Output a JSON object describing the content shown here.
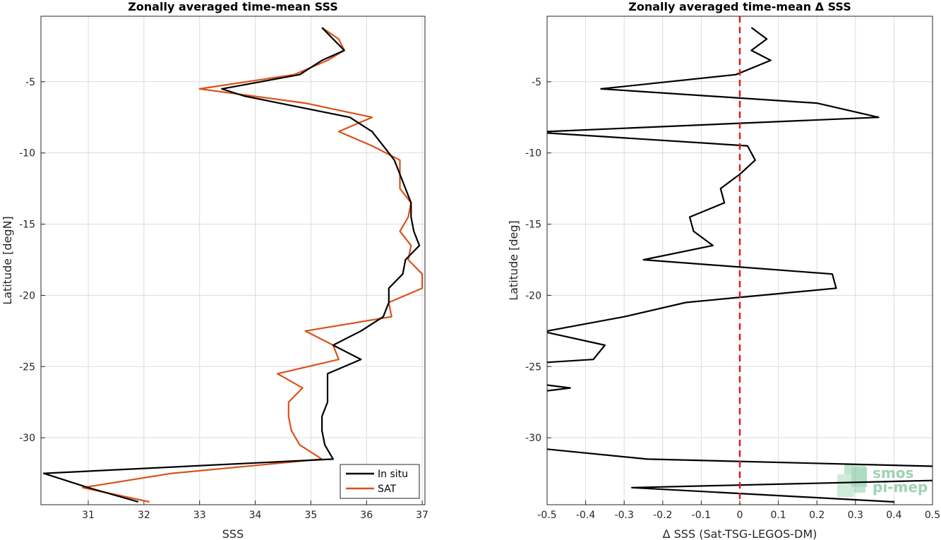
{
  "chart_data": [
    {
      "type": "line",
      "title": "Zonally averaged time-mean SSS",
      "xlabel": "SSS",
      "ylabel": "Latitude [degN]",
      "xlim": [
        30.15,
        37.05
      ],
      "ylim": [
        -34.7,
        -0.4
      ],
      "xticks": [
        31,
        32,
        33,
        34,
        35,
        36,
        37
      ],
      "yticks": [
        -5,
        -10,
        -15,
        -20,
        -25,
        -30
      ],
      "grid": true,
      "legend": "bottom-right",
      "series": [
        {
          "name": "In situ",
          "color": "#000000",
          "lat": [
            -1.2,
            -2.0,
            -2.8,
            -3.5,
            -4.5,
            -5.5,
            -6.0,
            -7.5,
            -8.5,
            -9.5,
            -10.5,
            -11.5,
            -12.5,
            -13.5,
            -14.5,
            -15.5,
            -16.5,
            -17.5,
            -18.5,
            -19.5,
            -20.5,
            -21.5,
            -22.5,
            -23.5,
            -24.5,
            -25.5,
            -26.5,
            -27.5,
            -28.5,
            -29.5,
            -30.5,
            -31.5,
            -32.5,
            -33.5,
            -34.5
          ],
          "sss": [
            35.2,
            35.4,
            35.6,
            35.2,
            34.8,
            33.4,
            33.8,
            35.7,
            36.1,
            36.3,
            36.5,
            36.6,
            36.7,
            36.8,
            36.8,
            36.85,
            36.95,
            36.7,
            36.65,
            36.4,
            36.4,
            36.3,
            35.9,
            35.4,
            35.9,
            35.3,
            35.3,
            35.3,
            35.2,
            35.2,
            35.25,
            35.4,
            30.2,
            31.0,
            31.9
          ]
        },
        {
          "name": "SAT",
          "color": "#D95319",
          "lat": [
            -1.2,
            -2.0,
            -2.8,
            -3.5,
            -4.5,
            -5.5,
            -6.5,
            -7.5,
            -8.5,
            -9.5,
            -10.5,
            -11.5,
            -12.5,
            -13.5,
            -14.5,
            -15.5,
            -16.5,
            -17.5,
            -18.5,
            -19.5,
            -20.5,
            -21.5,
            -22.5,
            -23.5,
            -24.5,
            -25.5,
            -26.5,
            -27.5,
            -28.5,
            -29.5,
            -30.5,
            -31.5,
            -32.5,
            -33.5,
            -34.5
          ],
          "sss": [
            35.2,
            35.5,
            35.6,
            35.3,
            34.7,
            33.0,
            34.9,
            36.1,
            35.5,
            36.1,
            36.6,
            36.6,
            36.6,
            36.8,
            36.75,
            36.6,
            36.8,
            36.75,
            37.0,
            37.0,
            36.4,
            36.45,
            34.9,
            35.4,
            35.5,
            34.4,
            34.85,
            34.6,
            34.6,
            34.65,
            34.8,
            35.2,
            32.5,
            30.9,
            32.1
          ]
        }
      ]
    },
    {
      "type": "line",
      "title": "Zonally averaged time-mean Δ SSS",
      "xlabel": "Δ SSS (Sat-TSG-LEGOS-DM)",
      "ylabel": "Latitude [deg]",
      "xlim": [
        -0.5,
        0.5
      ],
      "ylim": [
        -34.7,
        -0.4
      ],
      "xticks": [
        -0.5,
        -0.4,
        -0.3,
        -0.2,
        -0.1,
        0,
        0.1,
        0.2,
        0.3,
        0.4,
        0.5
      ],
      "xtick_labels": [
        "-0.5",
        "-0.4",
        "-0.3",
        "-0.2",
        "-0.1",
        "0",
        "0.1",
        "0.2",
        "0.3",
        "0.4",
        "0.5"
      ],
      "yticks": [
        -5,
        -10,
        -15,
        -20,
        -25,
        -30
      ],
      "grid": true,
      "reference_line": {
        "x": 0,
        "style": "dashed",
        "color": "#E31A1C"
      },
      "series": [
        {
          "color": "#000000",
          "segments": [
            [
              [
                -1.2,
                0.03
              ],
              [
                -2.0,
                0.07
              ],
              [
                -2.8,
                0.03
              ],
              [
                -3.5,
                0.08
              ],
              [
                -4.5,
                -0.01
              ],
              [
                -5.5,
                -0.36
              ],
              [
                -6.5,
                0.2
              ],
              [
                -7.5,
                0.36
              ],
              [
                -8.5,
                -0.5
              ]
            ],
            [
              [
                -8.6,
                -0.5
              ],
              [
                -9.5,
                0.02
              ],
              [
                -10.5,
                0.04
              ],
              [
                -11.5,
                0.0
              ],
              [
                -12.5,
                -0.05
              ],
              [
                -13.5,
                -0.04
              ],
              [
                -14.5,
                -0.13
              ],
              [
                -15.5,
                -0.12
              ],
              [
                -16.5,
                -0.07
              ],
              [
                -17.5,
                -0.25
              ],
              [
                -18.5,
                0.24
              ],
              [
                -19.5,
                0.25
              ],
              [
                -20.5,
                -0.14
              ],
              [
                -21.5,
                -0.3
              ],
              [
                -22.5,
                -0.5
              ]
            ],
            [
              [
                -22.6,
                -0.5
              ],
              [
                -23.5,
                -0.35
              ],
              [
                -24.5,
                -0.38
              ],
              [
                -24.7,
                -0.5
              ]
            ],
            [
              [
                -26.3,
                -0.5
              ],
              [
                -26.5,
                -0.44
              ],
              [
                -26.7,
                -0.5
              ]
            ],
            [
              [
                -30.8,
                -0.5
              ],
              [
                -31.5,
                -0.24
              ],
              [
                -32.0,
                0.5
              ]
            ],
            [
              [
                -33.0,
                0.5
              ],
              [
                -33.5,
                -0.28
              ],
              [
                -34.5,
                0.4
              ]
            ]
          ]
        }
      ]
    }
  ],
  "watermark": {
    "line1": "smos",
    "line2": "pi-mep"
  }
}
